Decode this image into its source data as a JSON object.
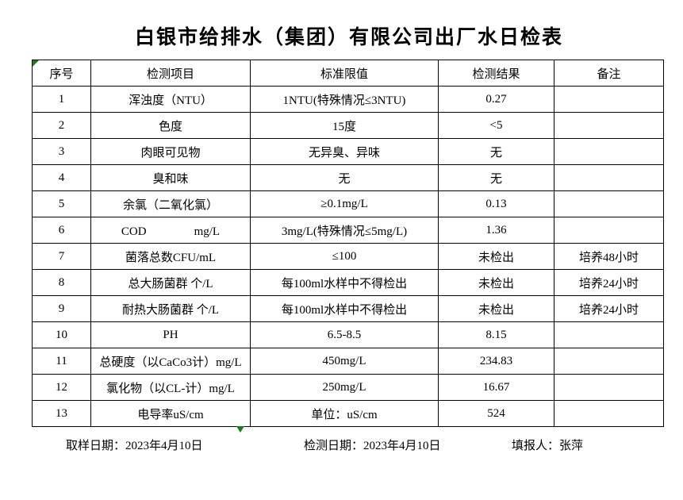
{
  "title": "白银市给排水（集团）有限公司出厂水日检表",
  "colors": {
    "indicator_green": "#1a7f1a",
    "border": "#000000",
    "background": "#ffffff",
    "text": "#000000"
  },
  "table": {
    "headers": [
      "序号",
      "检测项目",
      "标准限值",
      "检测结果",
      "备注"
    ],
    "rows": [
      {
        "no": "1",
        "item": "浑浊度（NTU）",
        "limit": "1NTU(特殊情况≤3NTU)",
        "result": "0.27",
        "note": ""
      },
      {
        "no": "2",
        "item": "色度",
        "limit": "15度",
        "result": "<5",
        "note": ""
      },
      {
        "no": "3",
        "item": "肉眼可见物",
        "limit": "无异臭、异味",
        "result": "无",
        "note": ""
      },
      {
        "no": "4",
        "item": "臭和味",
        "limit": "无",
        "result": "无",
        "note": ""
      },
      {
        "no": "5",
        "item": "余氯（二氧化氯）",
        "limit": "≥0.1mg/L",
        "result": "0.13",
        "note": ""
      },
      {
        "no": "6",
        "item": "COD　　　　mg/L",
        "limit": "3mg/L(特殊情况≤5mg/L)",
        "result": "1.36",
        "note": ""
      },
      {
        "no": "7",
        "item": "菌落总数CFU/mL",
        "limit": "≤100",
        "result": "未检出",
        "note": "培养48小时"
      },
      {
        "no": "8",
        "item": "总大肠菌群 个/L",
        "limit": "每100ml水样中不得检出",
        "result": "未检出",
        "note": "培养24小时"
      },
      {
        "no": "9",
        "item": "耐热大肠菌群 个/L",
        "limit": "每100ml水样中不得检出",
        "result": "未检出",
        "note": "培养24小时"
      },
      {
        "no": "10",
        "item": "PH",
        "limit": "6.5-8.5",
        "result": "8.15",
        "note": ""
      },
      {
        "no": "11",
        "item": "总硬度（以CaCo3计）mg/L",
        "limit": "450mg/L",
        "result": "234.83",
        "note": ""
      },
      {
        "no": "12",
        "item": "氯化物（以CL-计）mg/L",
        "limit": "250mg/L",
        "result": "16.67",
        "note": ""
      },
      {
        "no": "13",
        "item": "电导率uS/cm",
        "limit": "单位：uS/cm",
        "result": "524",
        "note": ""
      }
    ]
  },
  "footer": {
    "sampling": "取样日期：2023年4月10日",
    "testing": "检测日期：2023年4月10日",
    "reporter": "填报人：张萍"
  }
}
